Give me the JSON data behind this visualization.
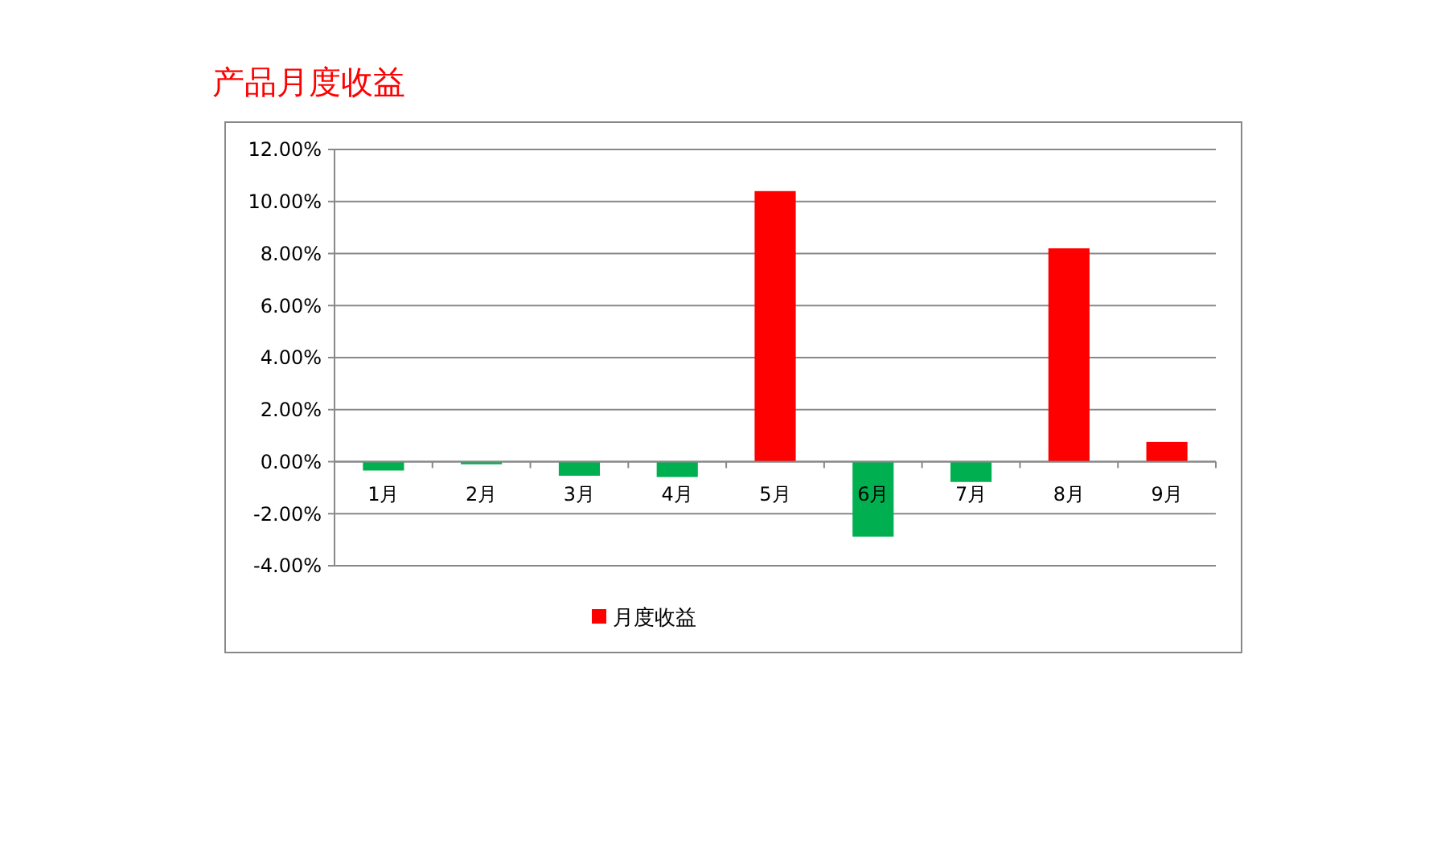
{
  "chart_data": {
    "type": "bar",
    "title": "产品月度收益",
    "categories": [
      "1月",
      "2月",
      "3月",
      "4月",
      "5月",
      "6月",
      "7月",
      "8月",
      "9月"
    ],
    "series": [
      {
        "name": "月度收益",
        "color": "#ff0000",
        "values": [
          -0.34,
          -0.1,
          -0.54,
          -0.59,
          10.4,
          -2.88,
          -0.78,
          8.2,
          0.76
        ],
        "colors": [
          "#00b050",
          "#00b050",
          "#00b050",
          "#00b050",
          "#ff0000",
          "#00b050",
          "#00b050",
          "#ff0000",
          "#ff0000"
        ]
      }
    ],
    "ylim": [
      -4,
      12
    ],
    "yticks": [
      {
        "value": -4,
        "label": "-4.00%"
      },
      {
        "value": -2,
        "label": "-2.00%"
      },
      {
        "value": 0,
        "label": "0.00%"
      },
      {
        "value": 2,
        "label": "2.00%"
      },
      {
        "value": 4,
        "label": "4.00%"
      },
      {
        "value": 6,
        "label": "6.00%"
      },
      {
        "value": 8,
        "label": "8.00%"
      },
      {
        "value": 10,
        "label": "10.00%"
      },
      {
        "value": 12,
        "label": "12.00%"
      }
    ],
    "grid": "y",
    "legend": "bottom"
  }
}
